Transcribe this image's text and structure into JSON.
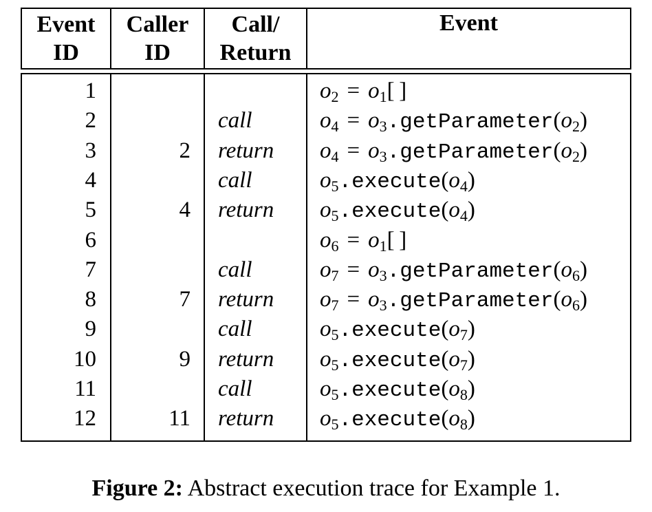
{
  "headers": {
    "event_id": [
      "Event",
      "ID"
    ],
    "caller_id": [
      "Caller",
      "ID"
    ],
    "call_return": [
      "Call/",
      "Return"
    ],
    "event": "Event"
  },
  "rows": [
    {
      "id": "1",
      "caller": "",
      "cr": "",
      "event": {
        "kind": "index",
        "lhs": "2",
        "obj": "1"
      }
    },
    {
      "id": "2",
      "caller": "",
      "cr": "call",
      "event": {
        "kind": "assign_call",
        "lhs": "4",
        "obj": "3",
        "method": "getParameter",
        "arg": "2"
      }
    },
    {
      "id": "3",
      "caller": "2",
      "cr": "return",
      "event": {
        "kind": "assign_call",
        "lhs": "4",
        "obj": "3",
        "method": "getParameter",
        "arg": "2"
      }
    },
    {
      "id": "4",
      "caller": "",
      "cr": "call",
      "event": {
        "kind": "call",
        "obj": "5",
        "method": "execute",
        "arg": "4"
      }
    },
    {
      "id": "5",
      "caller": "4",
      "cr": "return",
      "event": {
        "kind": "call",
        "obj": "5",
        "method": "execute",
        "arg": "4"
      }
    },
    {
      "id": "6",
      "caller": "",
      "cr": "",
      "event": {
        "kind": "index",
        "lhs": "6",
        "obj": "1"
      }
    },
    {
      "id": "7",
      "caller": "",
      "cr": "call",
      "event": {
        "kind": "assign_call",
        "lhs": "7",
        "obj": "3",
        "method": "getParameter",
        "arg": "6"
      }
    },
    {
      "id": "8",
      "caller": "7",
      "cr": "return",
      "event": {
        "kind": "assign_call",
        "lhs": "7",
        "obj": "3",
        "method": "getParameter",
        "arg": "6"
      }
    },
    {
      "id": "9",
      "caller": "",
      "cr": "call",
      "event": {
        "kind": "call",
        "obj": "5",
        "method": "execute",
        "arg": "7"
      }
    },
    {
      "id": "10",
      "caller": "9",
      "cr": "return",
      "event": {
        "kind": "call",
        "obj": "5",
        "method": "execute",
        "arg": "7"
      }
    },
    {
      "id": "11",
      "caller": "",
      "cr": "call",
      "event": {
        "kind": "call",
        "obj": "5",
        "method": "execute",
        "arg": "8"
      }
    },
    {
      "id": "12",
      "caller": "11",
      "cr": "return",
      "event": {
        "kind": "call",
        "obj": "5",
        "method": "execute",
        "arg": "8"
      }
    }
  ],
  "caption": {
    "label": "Figure 2:",
    "text": " Abstract execution trace for Example 1."
  }
}
